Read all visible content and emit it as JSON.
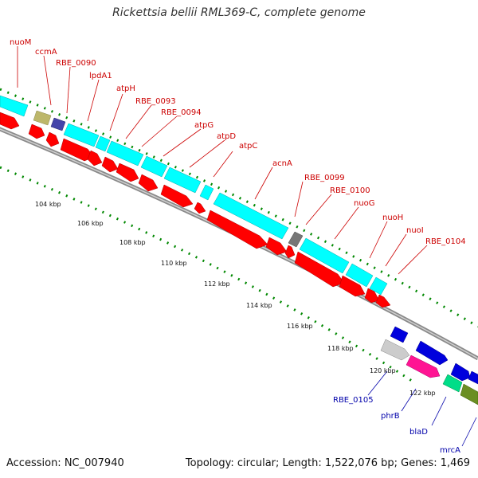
{
  "header": {
    "title": "Rickettsia bellii RML369-C, complete genome"
  },
  "footer": {
    "accession": "Accession: NC_007940",
    "summary": "Topology: circular; Length: 1,522,076 bp; Genes: 1,469"
  },
  "colors": {
    "backbone": "#8a8a8a",
    "cds_feature": "#ff0000",
    "top_gene": "#00ffff",
    "tick": "#008800",
    "red_label": "#cc0000",
    "blue_label": "#0000aa"
  },
  "map": {
    "tick_labels": [
      "104 kbp",
      "106 kbp",
      "108 kbp",
      "110 kbp",
      "112 kbp",
      "114 kbp",
      "116 kbp",
      "118 kbp",
      "120 kbp",
      "122 kbp"
    ],
    "upper_gene_labels": [
      "nuoM",
      "ccmA",
      "RBE_0090",
      "lpdA1",
      "atpH",
      "RBE_0093",
      "RBE_0094",
      "atpG",
      "atpD",
      "atpC",
      "acnA",
      "RBE_0099",
      "RBE_0100",
      "nuoG",
      "nuoH",
      "nuoI",
      "RBE_0104"
    ],
    "lower_gene_labels": [
      "RBE_0105",
      "phrB",
      "blaD",
      "mrcA"
    ]
  }
}
